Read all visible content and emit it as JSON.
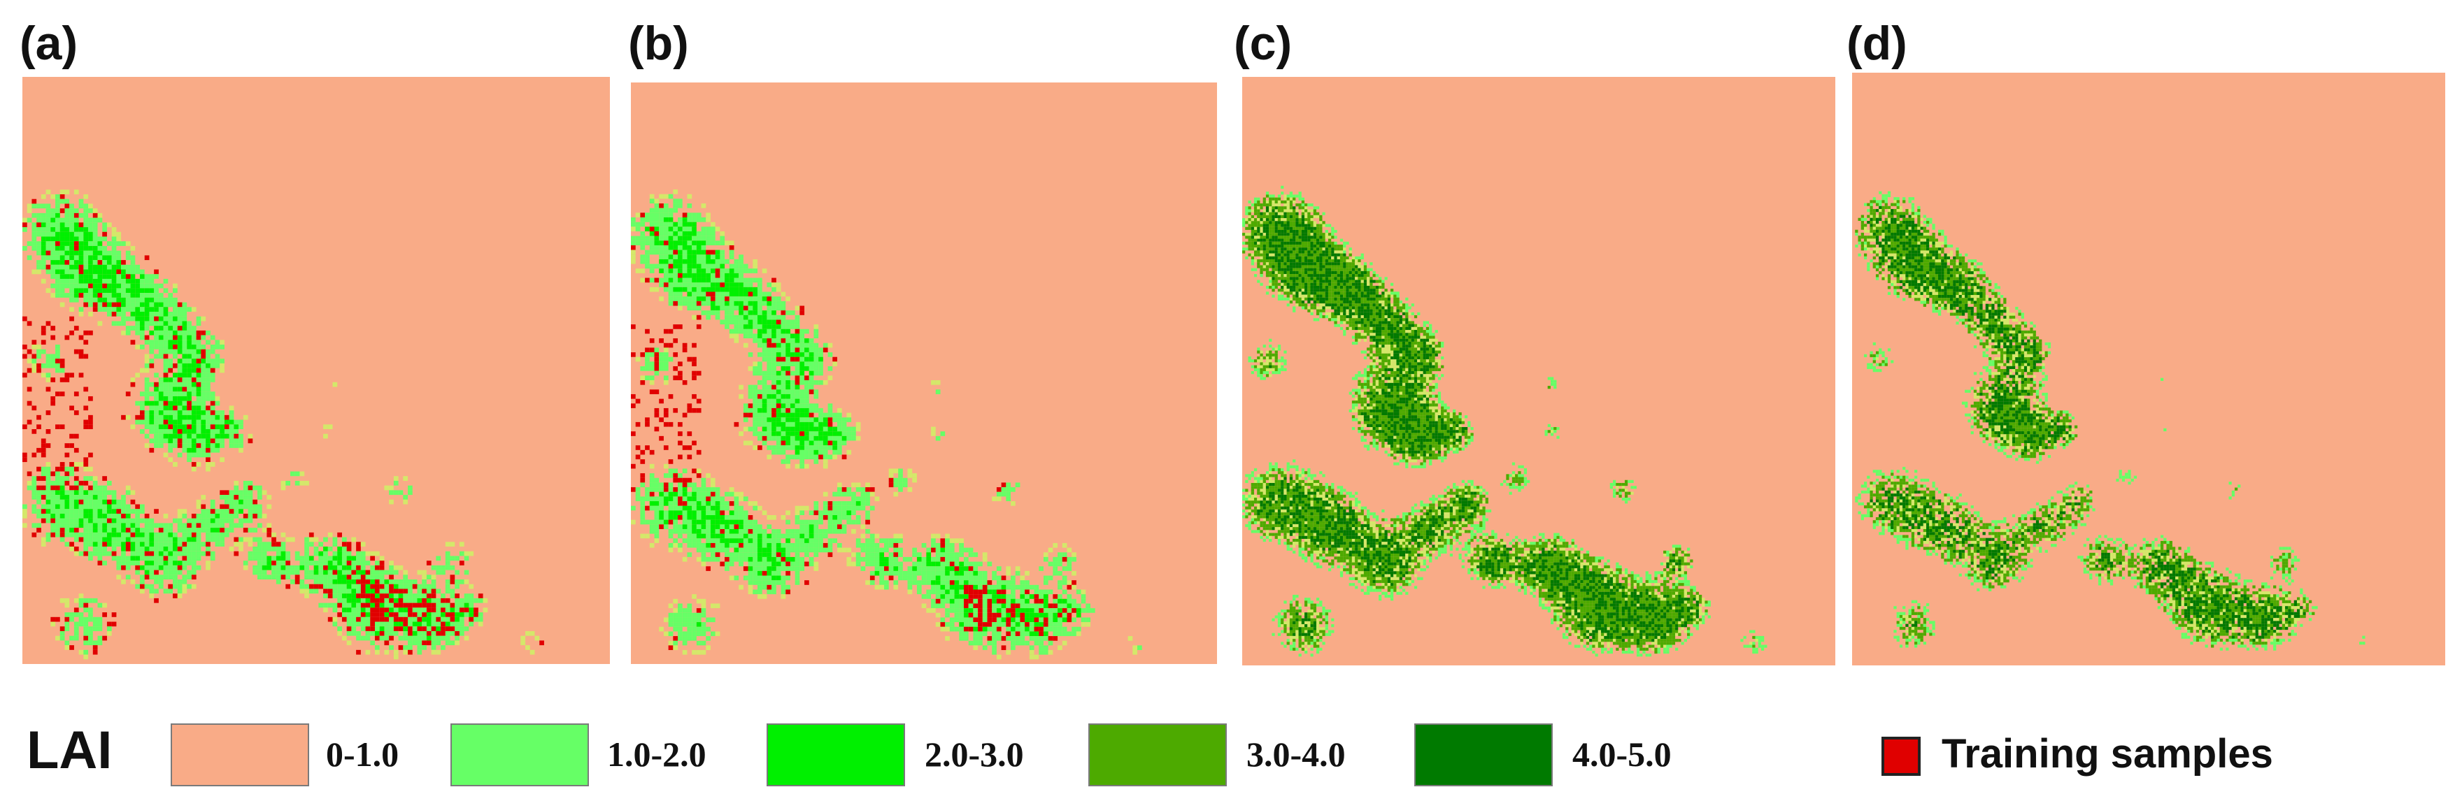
{
  "colors": {
    "background": "#f9ab87",
    "lai_1_2": "#66ff66",
    "lai_2_3": "#00f000",
    "lai_3_4": "#4daa00",
    "lai_4_5": "#007a00",
    "training": "#e00000",
    "water_edge": "#d4e86a"
  },
  "panels": [
    {
      "label": "(a)",
      "style": "coarse",
      "training_samples": true
    },
    {
      "label": "(b)",
      "style": "coarse",
      "training_samples": true
    },
    {
      "label": "(c)",
      "style": "fine",
      "training_samples": false
    },
    {
      "label": "(d)",
      "style": "fine_sparse",
      "training_samples": false
    }
  ],
  "legend": {
    "title": "LAI",
    "classes": [
      {
        "range": "0-1.0",
        "color": "#f9ab87"
      },
      {
        "range": "1.0-2.0",
        "color": "#66ff66"
      },
      {
        "range": "2.0-3.0",
        "color": "#00f000"
      },
      {
        "range": "3.0-4.0",
        "color": "#4daa00"
      },
      {
        "range": "4.0-5.0",
        "color": "#007a00"
      }
    ],
    "training_label": "Training samples",
    "training_color": "#e00000"
  }
}
